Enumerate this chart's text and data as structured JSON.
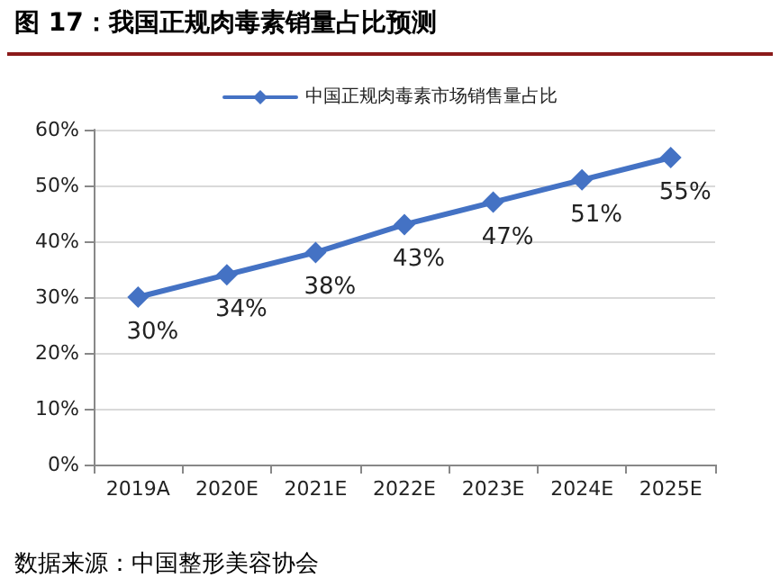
{
  "chart_data": {
    "type": "line",
    "title": "图 17：我国正规肉毒素销量占比预测",
    "categories": [
      "2019A",
      "2020E",
      "2021E",
      "2022E",
      "2023E",
      "2024E",
      "2025E"
    ],
    "series": [
      {
        "name": "中国正规肉毒素市场销售量占比",
        "color": "#4472c4",
        "values": [
          30,
          34,
          38,
          43,
          47,
          51,
          55
        ],
        "value_labels": [
          "30%",
          "34%",
          "38%",
          "43%",
          "47%",
          "51%",
          "55%"
        ]
      }
    ],
    "ylim": [
      0,
      60
    ],
    "yticks": [
      {
        "value": 0,
        "label": "0%"
      },
      {
        "value": 10,
        "label": "10%"
      },
      {
        "value": 20,
        "label": "20%"
      },
      {
        "value": 30,
        "label": "30%"
      },
      {
        "value": 40,
        "label": "40%"
      },
      {
        "value": 50,
        "label": "50%"
      },
      {
        "value": 60,
        "label": "60%"
      }
    ],
    "grid": "y",
    "legend": "top",
    "marker": "diamond",
    "line_style": "solid",
    "annotations": [
      "数据来源：中国整形美容协会"
    ]
  }
}
